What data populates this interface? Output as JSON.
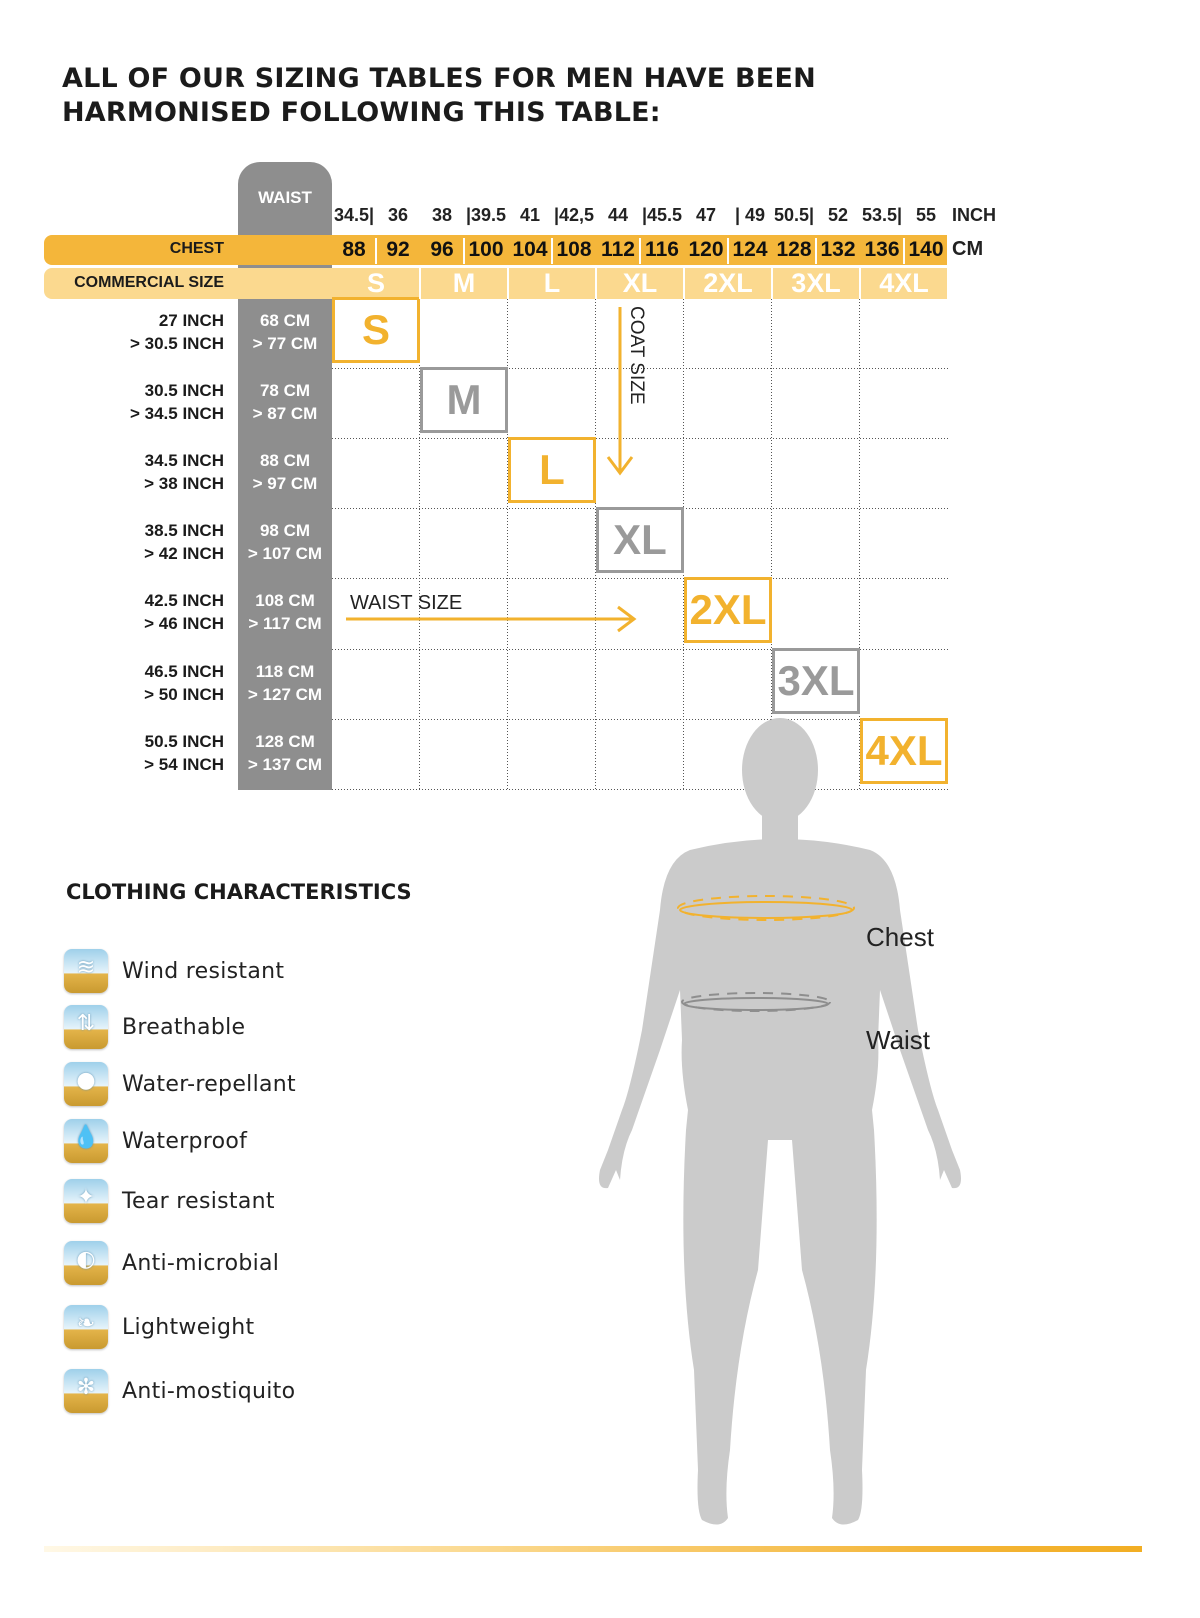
{
  "title": {
    "line1": "ALL OF OUR SIZING TABLES FOR MEN HAVE BEEN",
    "line2": "HARMONISED FOLLOWING THIS TABLE:"
  },
  "table": {
    "waist_header": "WAIST",
    "chest_label": "CHEST",
    "commercial_label": "COMMERCIAL SIZE",
    "inch_unit": "INCH",
    "cm_unit": "CM",
    "columns": [
      {
        "size": "S",
        "inch": [
          "34.5|",
          "36"
        ],
        "cm": [
          "88",
          "92"
        ]
      },
      {
        "size": "M",
        "inch": [
          "38",
          "|39.5"
        ],
        "cm": [
          "96",
          "100"
        ]
      },
      {
        "size": "L",
        "inch": [
          "41",
          "|42,5"
        ],
        "cm": [
          "104",
          "108"
        ]
      },
      {
        "size": "XL",
        "inch": [
          "44",
          "|45.5"
        ],
        "cm": [
          "112",
          "116"
        ]
      },
      {
        "size": "2XL",
        "inch": [
          "47",
          "|  49"
        ],
        "cm": [
          "120",
          "124"
        ]
      },
      {
        "size": "3XL",
        "inch": [
          "50.5|",
          "52"
        ],
        "cm": [
          "128",
          "132"
        ]
      },
      {
        "size": "4XL",
        "inch": [
          "53.5|",
          "55"
        ],
        "cm": [
          "136",
          "140"
        ]
      }
    ],
    "rows": [
      {
        "inch1": "27 INCH",
        "inch2": "> 30.5 INCH",
        "cm1": "68 CM",
        "cm2": "> 77 CM"
      },
      {
        "inch1": "30.5 INCH",
        "inch2": "> 34.5 INCH",
        "cm1": "78 CM",
        "cm2": "> 87 CM"
      },
      {
        "inch1": "34.5 INCH",
        "inch2": "> 38 INCH",
        "cm1": "88 CM",
        "cm2": "> 97 CM"
      },
      {
        "inch1": "38.5 INCH",
        "inch2": "> 42 INCH",
        "cm1": "98 CM",
        "cm2": "> 107 CM"
      },
      {
        "inch1": "42.5 INCH",
        "inch2": "> 46 INCH",
        "cm1": "108 CM",
        "cm2": "> 117 CM"
      },
      {
        "inch1": "46.5 INCH",
        "inch2": "> 50 INCH",
        "cm1": "118 CM",
        "cm2": "> 127 CM"
      },
      {
        "inch1": "50.5 INCH",
        "inch2": "> 54 INCH",
        "cm1": "128 CM",
        "cm2": "> 137 CM"
      }
    ],
    "coat_size_label": "COAT SIZE",
    "waist_size_label": "WAIST SIZE",
    "accent_color": "#f2b22e",
    "grey_color": "#9a9a9a"
  },
  "characteristics": {
    "title": "CLOTHING CHARACTERISTICS",
    "items": [
      {
        "label": "Wind resistant",
        "icon": "wind-icon",
        "glyph": "≋"
      },
      {
        "label": "Breathable",
        "icon": "breathable-icon",
        "glyph": "⇅"
      },
      {
        "label": "Water-repellant",
        "icon": "water-repellant-icon",
        "glyph": "●"
      },
      {
        "label": "Waterproof",
        "icon": "waterproof-icon",
        "glyph": "💧"
      },
      {
        "label": "Tear resistant",
        "icon": "tear-resistant-icon",
        "glyph": "✦"
      },
      {
        "label": "Anti-microbial",
        "icon": "anti-microbial-icon",
        "glyph": "◐"
      },
      {
        "label": "Lightweight",
        "icon": "lightweight-icon",
        "glyph": "❧"
      },
      {
        "label": "Anti-mostiquito",
        "icon": "anti-mosquito-icon",
        "glyph": "✻"
      }
    ]
  },
  "figure": {
    "chest_label": "Chest",
    "waist_label": "Waist"
  }
}
